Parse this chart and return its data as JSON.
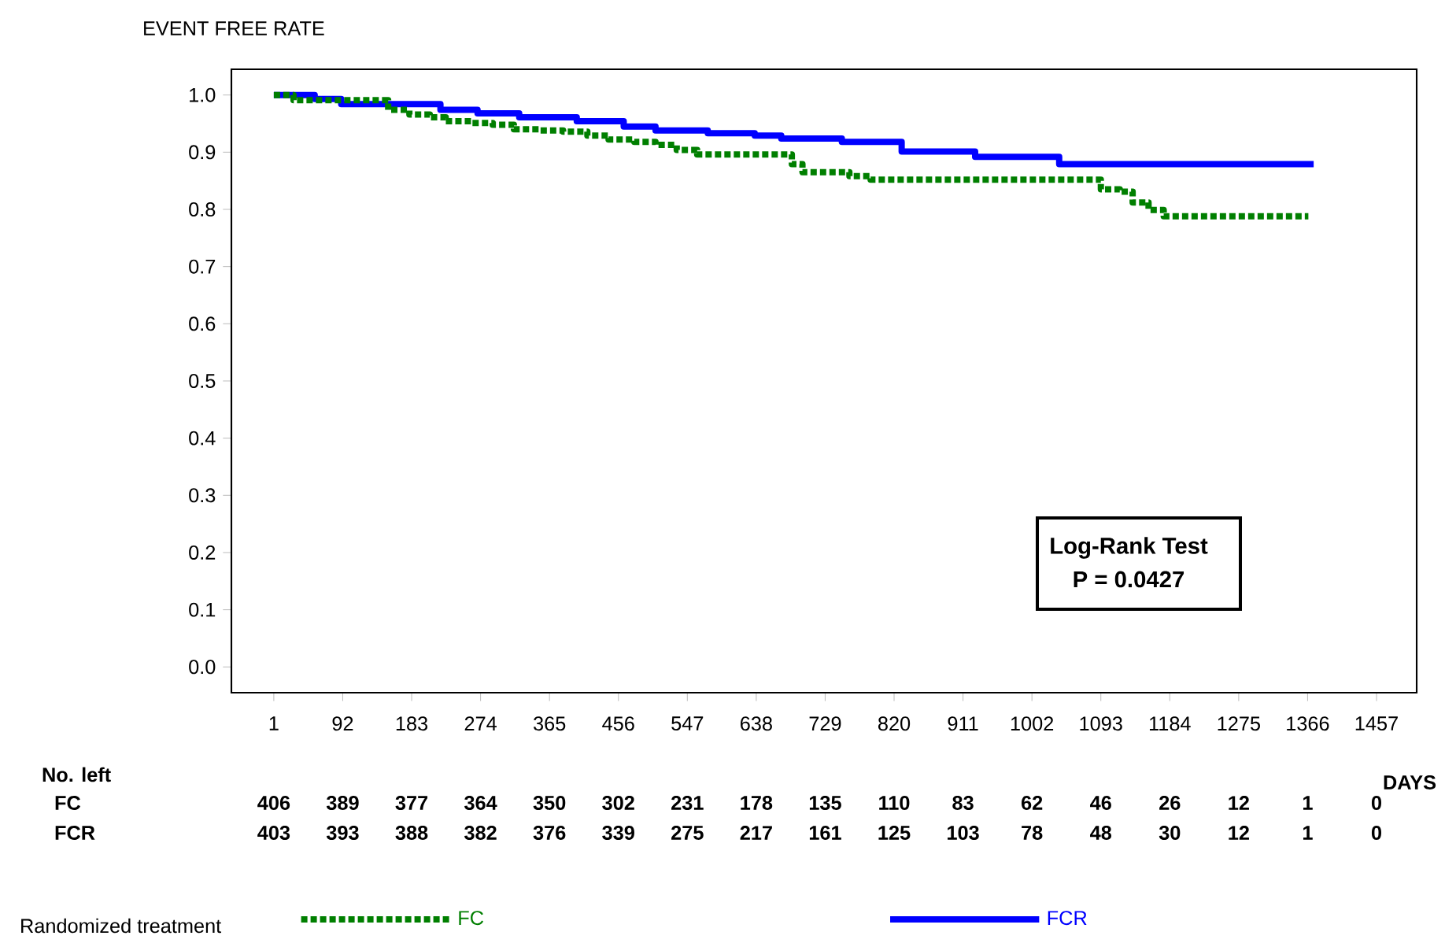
{
  "chart_data": {
    "type": "step",
    "ylabel": "EVENT FREE RATE",
    "xlabel": "DAYS",
    "legend_title": "Randomized treatment",
    "legend": "bottom",
    "marker": "none",
    "grid": false,
    "xlim": [
      -55,
      1510
    ],
    "ylim": [
      -0.045,
      1.045
    ],
    "xticks": [
      1,
      92,
      183,
      274,
      365,
      456,
      547,
      638,
      729,
      820,
      911,
      1002,
      1093,
      1184,
      1275,
      1366,
      1457
    ],
    "yticks": [
      {
        "value": 0,
        "label": "0.0"
      },
      {
        "value": 0.1,
        "label": "0.1"
      },
      {
        "value": 0.2,
        "label": "0.2"
      },
      {
        "value": 0.3,
        "label": "0.3"
      },
      {
        "value": 0.4,
        "label": "0.4"
      },
      {
        "value": 0.5,
        "label": "0.5"
      },
      {
        "value": 0.6,
        "label": "0.6"
      },
      {
        "value": 0.7,
        "label": "0.7"
      },
      {
        "value": 0.8,
        "label": "0.8"
      },
      {
        "value": 0.9,
        "label": "0.9"
      },
      {
        "value": 1,
        "label": "1.0"
      }
    ],
    "series": [
      {
        "name": "FC",
        "color": "#007f00",
        "line_style": "dashed",
        "x": [
          1,
          27,
          152,
          180,
          207,
          228,
          263,
          290,
          318,
          353,
          383,
          415,
          443,
          477,
          505,
          533,
          560,
          685,
          699,
          761,
          789,
          1093,
          1118,
          1135,
          1156,
          1176,
          1367
        ],
        "values": [
          1.0,
          0.991,
          0.974,
          0.966,
          0.961,
          0.954,
          0.951,
          0.948,
          0.94,
          0.938,
          0.936,
          0.929,
          0.922,
          0.918,
          0.913,
          0.904,
          0.896,
          0.879,
          0.865,
          0.858,
          0.852,
          0.835,
          0.831,
          0.812,
          0.799,
          0.788,
          0.788
        ]
      },
      {
        "name": "FCR",
        "color": "#0000ff",
        "line_style": "solid",
        "x": [
          1,
          55,
          90,
          221,
          270,
          325,
          401,
          463,
          505,
          574,
          636,
          671,
          751,
          830,
          927,
          1038,
          1374
        ],
        "values": [
          1.0,
          0.993,
          0.984,
          0.974,
          0.968,
          0.961,
          0.954,
          0.945,
          0.938,
          0.933,
          0.929,
          0.924,
          0.918,
          0.901,
          0.892,
          0.879,
          0.879
        ]
      }
    ],
    "annotations": [
      "Log-Rank Test",
      "P = 0.0427",
      "No. left",
      "FC",
      "406",
      "389",
      "377",
      "364",
      "350",
      "302",
      "231",
      "178",
      "135",
      "110",
      "83",
      "62",
      "46",
      "26",
      "12",
      "1",
      "0",
      "FCR",
      "403",
      "393",
      "388",
      "382",
      "376",
      "339",
      "275",
      "217",
      "161",
      "125",
      "103",
      "78",
      "48",
      "30",
      "12",
      "1",
      "0"
    ]
  }
}
